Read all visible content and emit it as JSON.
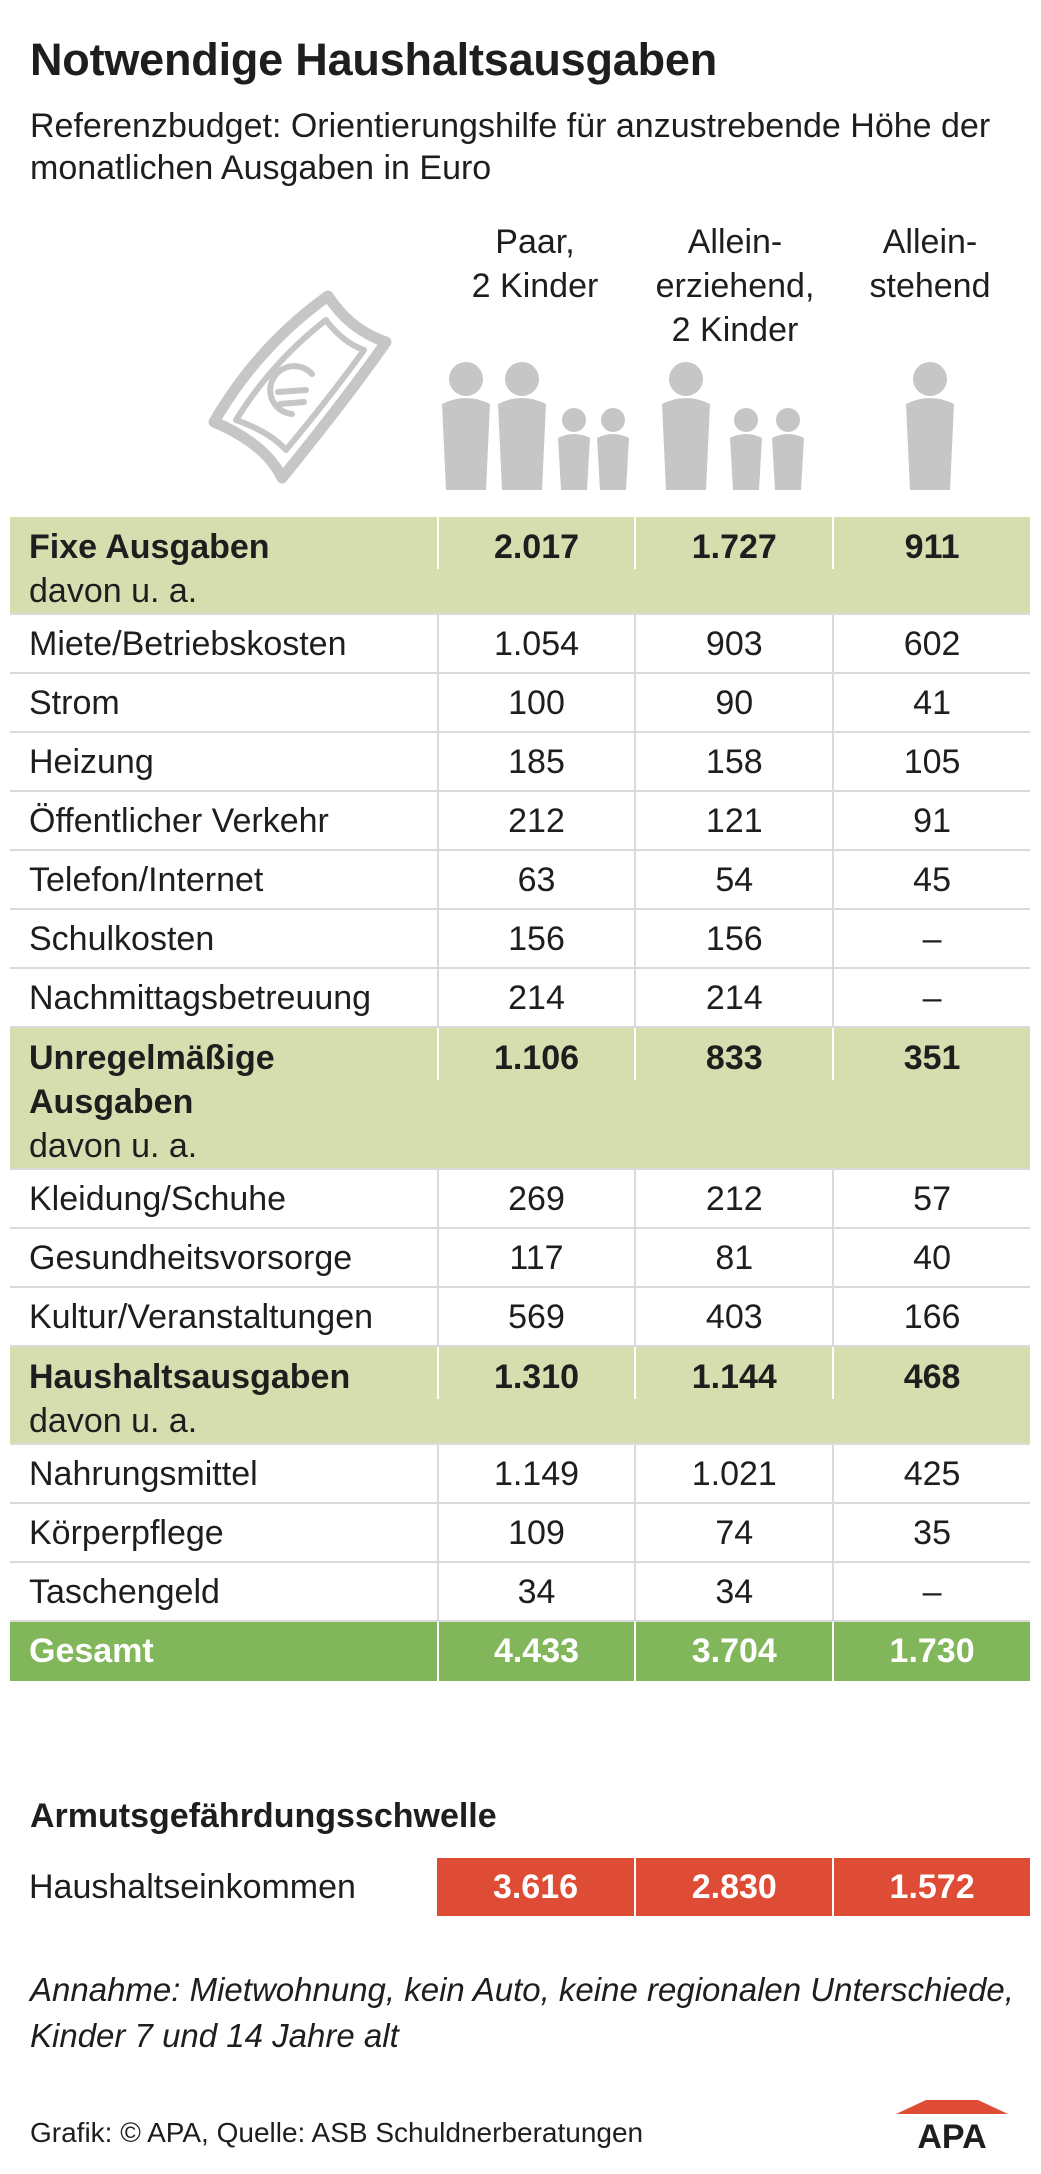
{
  "title": "Notwendige Haushaltsausgaben",
  "subtitle": "Referenzbudget: Orientierungshilfe für anzustrebende Höhe der monatlichen Ausgaben in Euro",
  "icons": {
    "money": "euro-banknote-icon",
    "people": "person-silhouette-icon",
    "logo": "apa-logo"
  },
  "colors": {
    "group_bg": "#d6deb0",
    "total_bg": "#81b75a",
    "poverty_bg": "#df4c35",
    "icon_gray": "#c6c6c6"
  },
  "chart_data": {
    "type": "table",
    "columns": [
      "Paar,\n2 Kinder",
      "Allein-\nerziehend,\n2 Kinder",
      "Allein-\nstehend"
    ],
    "sections": [
      {
        "title": "Fixe Ausgaben",
        "subtitle": "davon u. a.",
        "values": [
          "2.017",
          "1.727",
          "911"
        ],
        "rows": [
          {
            "label": "Miete/Betriebskosten",
            "values": [
              "1.054",
              "903",
              "602"
            ]
          },
          {
            "label": "Strom",
            "values": [
              "100",
              "90",
              "41"
            ]
          },
          {
            "label": "Heizung",
            "values": [
              "185",
              "158",
              "105"
            ]
          },
          {
            "label": "Öffentlicher Verkehr",
            "values": [
              "212",
              "121",
              "91"
            ]
          },
          {
            "label": "Telefon/Internet",
            "values": [
              "63",
              "54",
              "45"
            ]
          },
          {
            "label": "Schulkosten",
            "values": [
              "156",
              "156",
              "–"
            ]
          },
          {
            "label": "Nachmittagsbetreuung",
            "values": [
              "214",
              "214",
              "–"
            ]
          }
        ]
      },
      {
        "title": "Unregelmäßige\nAusgaben",
        "subtitle": "davon u. a.",
        "values": [
          "1.106",
          "833",
          "351"
        ],
        "rows": [
          {
            "label": "Kleidung/Schuhe",
            "values": [
              "269",
              "212",
              "57"
            ]
          },
          {
            "label": "Gesundheitsvorsorge",
            "values": [
              "117",
              "81",
              "40"
            ]
          },
          {
            "label": "Kultur/Veranstaltungen",
            "values": [
              "569",
              "403",
              "166"
            ]
          }
        ]
      },
      {
        "title": "Haushaltsausgaben",
        "subtitle": "davon u. a.",
        "values": [
          "1.310",
          "1.144",
          "468"
        ],
        "rows": [
          {
            "label": "Nahrungsmittel",
            "values": [
              "1.149",
              "1.021",
              "425"
            ]
          },
          {
            "label": "Körperpflege",
            "values": [
              "109",
              "74",
              "35"
            ]
          },
          {
            "label": "Taschengeld",
            "values": [
              "34",
              "34",
              "–"
            ]
          }
        ]
      }
    ],
    "total": {
      "label": "Gesamt",
      "values": [
        "4.433",
        "3.704",
        "1.730"
      ]
    },
    "poverty": {
      "title": "Armutsgefährdungsschwelle",
      "label": "Haushaltseinkommen",
      "values": [
        "3.616",
        "2.830",
        "1.572"
      ]
    }
  },
  "note": "Annahme: Mietwohnung, kein Auto, keine regionalen Unterschiede, Kinder 7 und 14 Jahre alt",
  "source": "Grafik: © APA, Quelle: ASB Schuldnerberatungen",
  "logo_text": "APA"
}
